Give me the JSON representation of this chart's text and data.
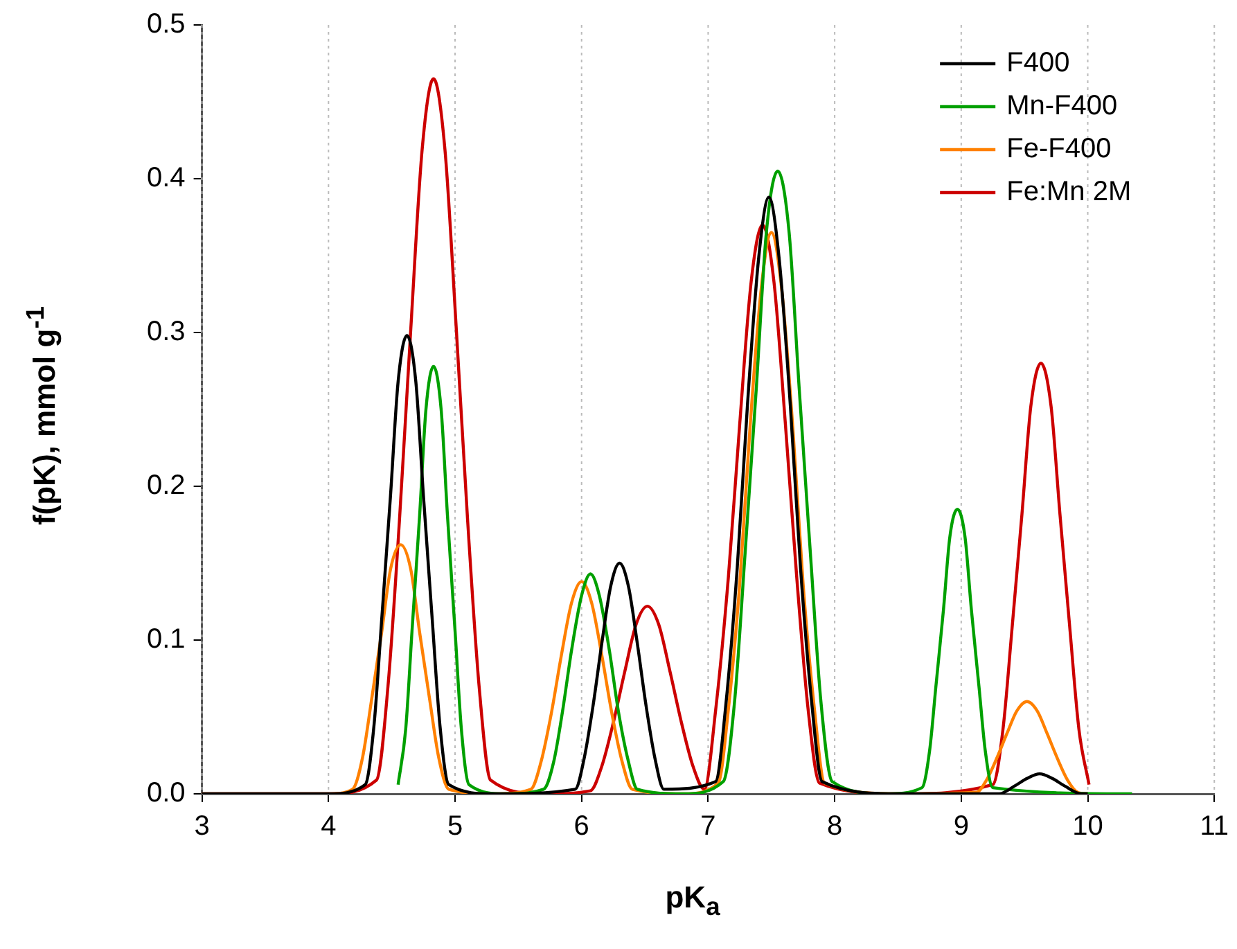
{
  "chart_data": {
    "type": "line",
    "xlabel": "pK$_{a}$",
    "ylabel": "f(pK), mmol g$^{-1}$",
    "xlim": [
      3,
      11
    ],
    "xticks": [
      3,
      4,
      5,
      6,
      7,
      8,
      9,
      10,
      11
    ],
    "ylim": [
      0,
      0.5
    ],
    "yticks": [
      {
        "value": 0,
        "label": "0.0"
      },
      0.1,
      0.2,
      0.3,
      0.4,
      0.5
    ],
    "grid": "x",
    "legend": "top right",
    "marker": "none",
    "line_style": "solid",
    "series": [
      {
        "name": "F400",
        "color": "#000000",
        "x": [
          3,
          4.0,
          4.29,
          4.36,
          4.42,
          4.49,
          4.55,
          4.62,
          4.69,
          4.75,
          4.82,
          4.88,
          4.95,
          5.3,
          5.95,
          6.02,
          6.09,
          6.16,
          6.23,
          6.3,
          6.37,
          6.44,
          6.51,
          6.58,
          6.65,
          7.06,
          7.14,
          7.23,
          7.31,
          7.4,
          7.48,
          7.56,
          7.65,
          7.73,
          7.82,
          7.9,
          8.5,
          9.3,
          9.42,
          9.52,
          9.62,
          9.72,
          9.82,
          9.95,
          10.0
        ],
        "values": [
          0,
          0,
          0.006,
          0.045,
          0.113,
          0.194,
          0.268,
          0.298,
          0.268,
          0.194,
          0.113,
          0.045,
          0.006,
          0,
          0.003,
          0.023,
          0.057,
          0.098,
          0.135,
          0.15,
          0.135,
          0.098,
          0.057,
          0.023,
          0.003,
          0.008,
          0.058,
          0.147,
          0.252,
          0.349,
          0.388,
          0.349,
          0.252,
          0.147,
          0.058,
          0.008,
          0,
          0,
          0.005,
          0.01,
          0.013,
          0.01,
          0.005,
          0,
          0
        ]
      },
      {
        "name": "Mn-F400",
        "color": "#00a000",
        "x": [
          4.55,
          4.61,
          4.66,
          4.72,
          4.77,
          4.83,
          4.89,
          4.94,
          5.0,
          5.05,
          5.11,
          5.4,
          5.7,
          5.78,
          5.85,
          5.92,
          6.0,
          6.07,
          6.14,
          6.22,
          6.29,
          6.37,
          6.44,
          6.8,
          7.12,
          7.21,
          7.29,
          7.38,
          7.46,
          7.55,
          7.64,
          7.72,
          7.81,
          7.89,
          7.98,
          8.4,
          8.69,
          8.75,
          8.8,
          8.86,
          8.91,
          8.97,
          9.03,
          9.08,
          9.14,
          9.19,
          9.25,
          10.35
        ],
        "values": [
          0.006,
          0.042,
          0.106,
          0.181,
          0.25,
          0.278,
          0.25,
          0.181,
          0.106,
          0.042,
          0.006,
          0,
          0.003,
          0.021,
          0.054,
          0.093,
          0.129,
          0.143,
          0.129,
          0.093,
          0.054,
          0.021,
          0.003,
          0,
          0.008,
          0.061,
          0.154,
          0.263,
          0.365,
          0.405,
          0.365,
          0.263,
          0.154,
          0.061,
          0.008,
          0,
          0.004,
          0.028,
          0.07,
          0.12,
          0.167,
          0.185,
          0.167,
          0.12,
          0.07,
          0.028,
          0.004,
          0
        ]
      },
      {
        "name": "Fe-F400",
        "color": "#ff8000",
        "x": [
          3,
          4.0,
          4.19,
          4.27,
          4.34,
          4.42,
          4.49,
          4.57,
          4.65,
          4.72,
          4.8,
          4.87,
          4.95,
          5.3,
          5.6,
          5.68,
          5.76,
          5.84,
          5.92,
          6.0,
          6.08,
          6.16,
          6.24,
          6.32,
          6.4,
          6.8,
          7.08,
          7.16,
          7.25,
          7.33,
          7.42,
          7.5,
          7.58,
          7.67,
          7.75,
          7.84,
          7.92,
          8.5,
          9.12,
          9.2,
          9.28,
          9.36,
          9.44,
          9.52,
          9.6,
          9.68,
          9.76,
          9.84,
          9.92,
          10.0
        ],
        "values": [
          0,
          0,
          0.003,
          0.024,
          0.061,
          0.105,
          0.146,
          0.162,
          0.146,
          0.105,
          0.061,
          0.024,
          0.003,
          0,
          0.003,
          0.021,
          0.052,
          0.09,
          0.124,
          0.138,
          0.124,
          0.09,
          0.052,
          0.021,
          0.003,
          0,
          0.007,
          0.055,
          0.137,
          0.237,
          0.329,
          0.365,
          0.329,
          0.237,
          0.137,
          0.055,
          0.007,
          0,
          0.001,
          0.009,
          0.023,
          0.039,
          0.054,
          0.06,
          0.054,
          0.039,
          0.023,
          0.009,
          0.001,
          0
        ]
      },
      {
        "name": "Fe:Mn 2M",
        "color": "#cc0000",
        "x": [
          3,
          4.0,
          4.38,
          4.47,
          4.56,
          4.65,
          4.74,
          4.83,
          4.92,
          5.01,
          5.1,
          5.19,
          5.28,
          5.7,
          6.07,
          6.16,
          6.25,
          6.34,
          6.43,
          6.52,
          6.61,
          6.7,
          6.79,
          6.88,
          6.97,
          7.06,
          7.16,
          7.25,
          7.34,
          7.43,
          7.52,
          7.61,
          7.7,
          7.79,
          7.88,
          8.5,
          9.25,
          9.33,
          9.4,
          9.48,
          9.55,
          9.63,
          9.71,
          9.78,
          9.86,
          9.93,
          10.01
        ],
        "values": [
          0,
          0,
          0.009,
          0.07,
          0.177,
          0.302,
          0.419,
          0.465,
          0.419,
          0.302,
          0.177,
          0.07,
          0.009,
          0,
          0.002,
          0.018,
          0.046,
          0.079,
          0.11,
          0.122,
          0.11,
          0.079,
          0.046,
          0.018,
          0.003,
          0.055,
          0.141,
          0.241,
          0.333,
          0.37,
          0.333,
          0.241,
          0.141,
          0.055,
          0.007,
          0,
          0.006,
          0.042,
          0.106,
          0.182,
          0.252,
          0.28,
          0.252,
          0.182,
          0.106,
          0.042,
          0.006
        ]
      }
    ]
  }
}
